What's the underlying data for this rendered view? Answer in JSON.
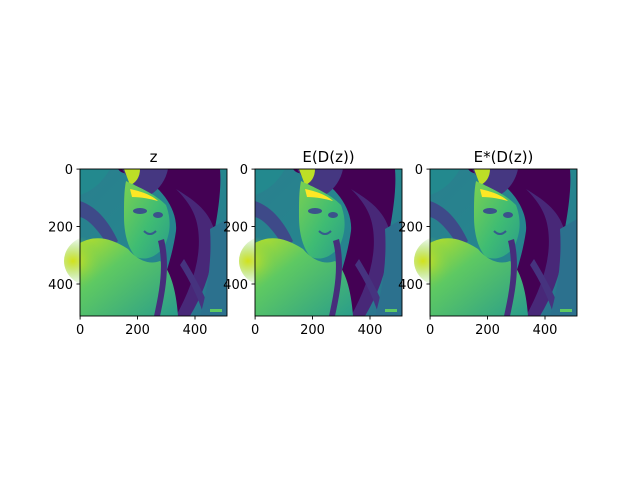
{
  "chart_data": [
    {
      "type": "heatmap",
      "title": "z",
      "colormap": "viridis",
      "content": "grayscale portrait of a woman rendered with viridis colormap",
      "xticks": [
        "0",
        "200",
        "400"
      ],
      "yticks": [
        "0",
        "200",
        "400"
      ],
      "xlim": [
        0,
        512
      ],
      "ylim": [
        512,
        0
      ]
    },
    {
      "type": "heatmap",
      "title": "E(D(z))",
      "colormap": "viridis",
      "content": "grayscale portrait of a woman rendered with viridis colormap",
      "xticks": [
        "0",
        "200",
        "400"
      ],
      "yticks": [
        "0",
        "200",
        "400"
      ],
      "xlim": [
        0,
        512
      ],
      "ylim": [
        512,
        0
      ]
    },
    {
      "type": "heatmap",
      "title": "E*(D(z))",
      "colormap": "viridis",
      "content": "grayscale portrait of a woman rendered with viridis colormap",
      "xticks": [
        "0",
        "200",
        "400"
      ],
      "yticks": [
        "0",
        "200",
        "400"
      ],
      "xlim": [
        0,
        512
      ],
      "ylim": [
        512,
        0
      ]
    }
  ],
  "colors": {
    "dark": "#440154",
    "mid_dark": "#3b528b",
    "mid": "#21908d",
    "mid_light": "#35b779",
    "light": "#5ec962",
    "bright": "#b5de2b",
    "yellow": "#fde725"
  }
}
